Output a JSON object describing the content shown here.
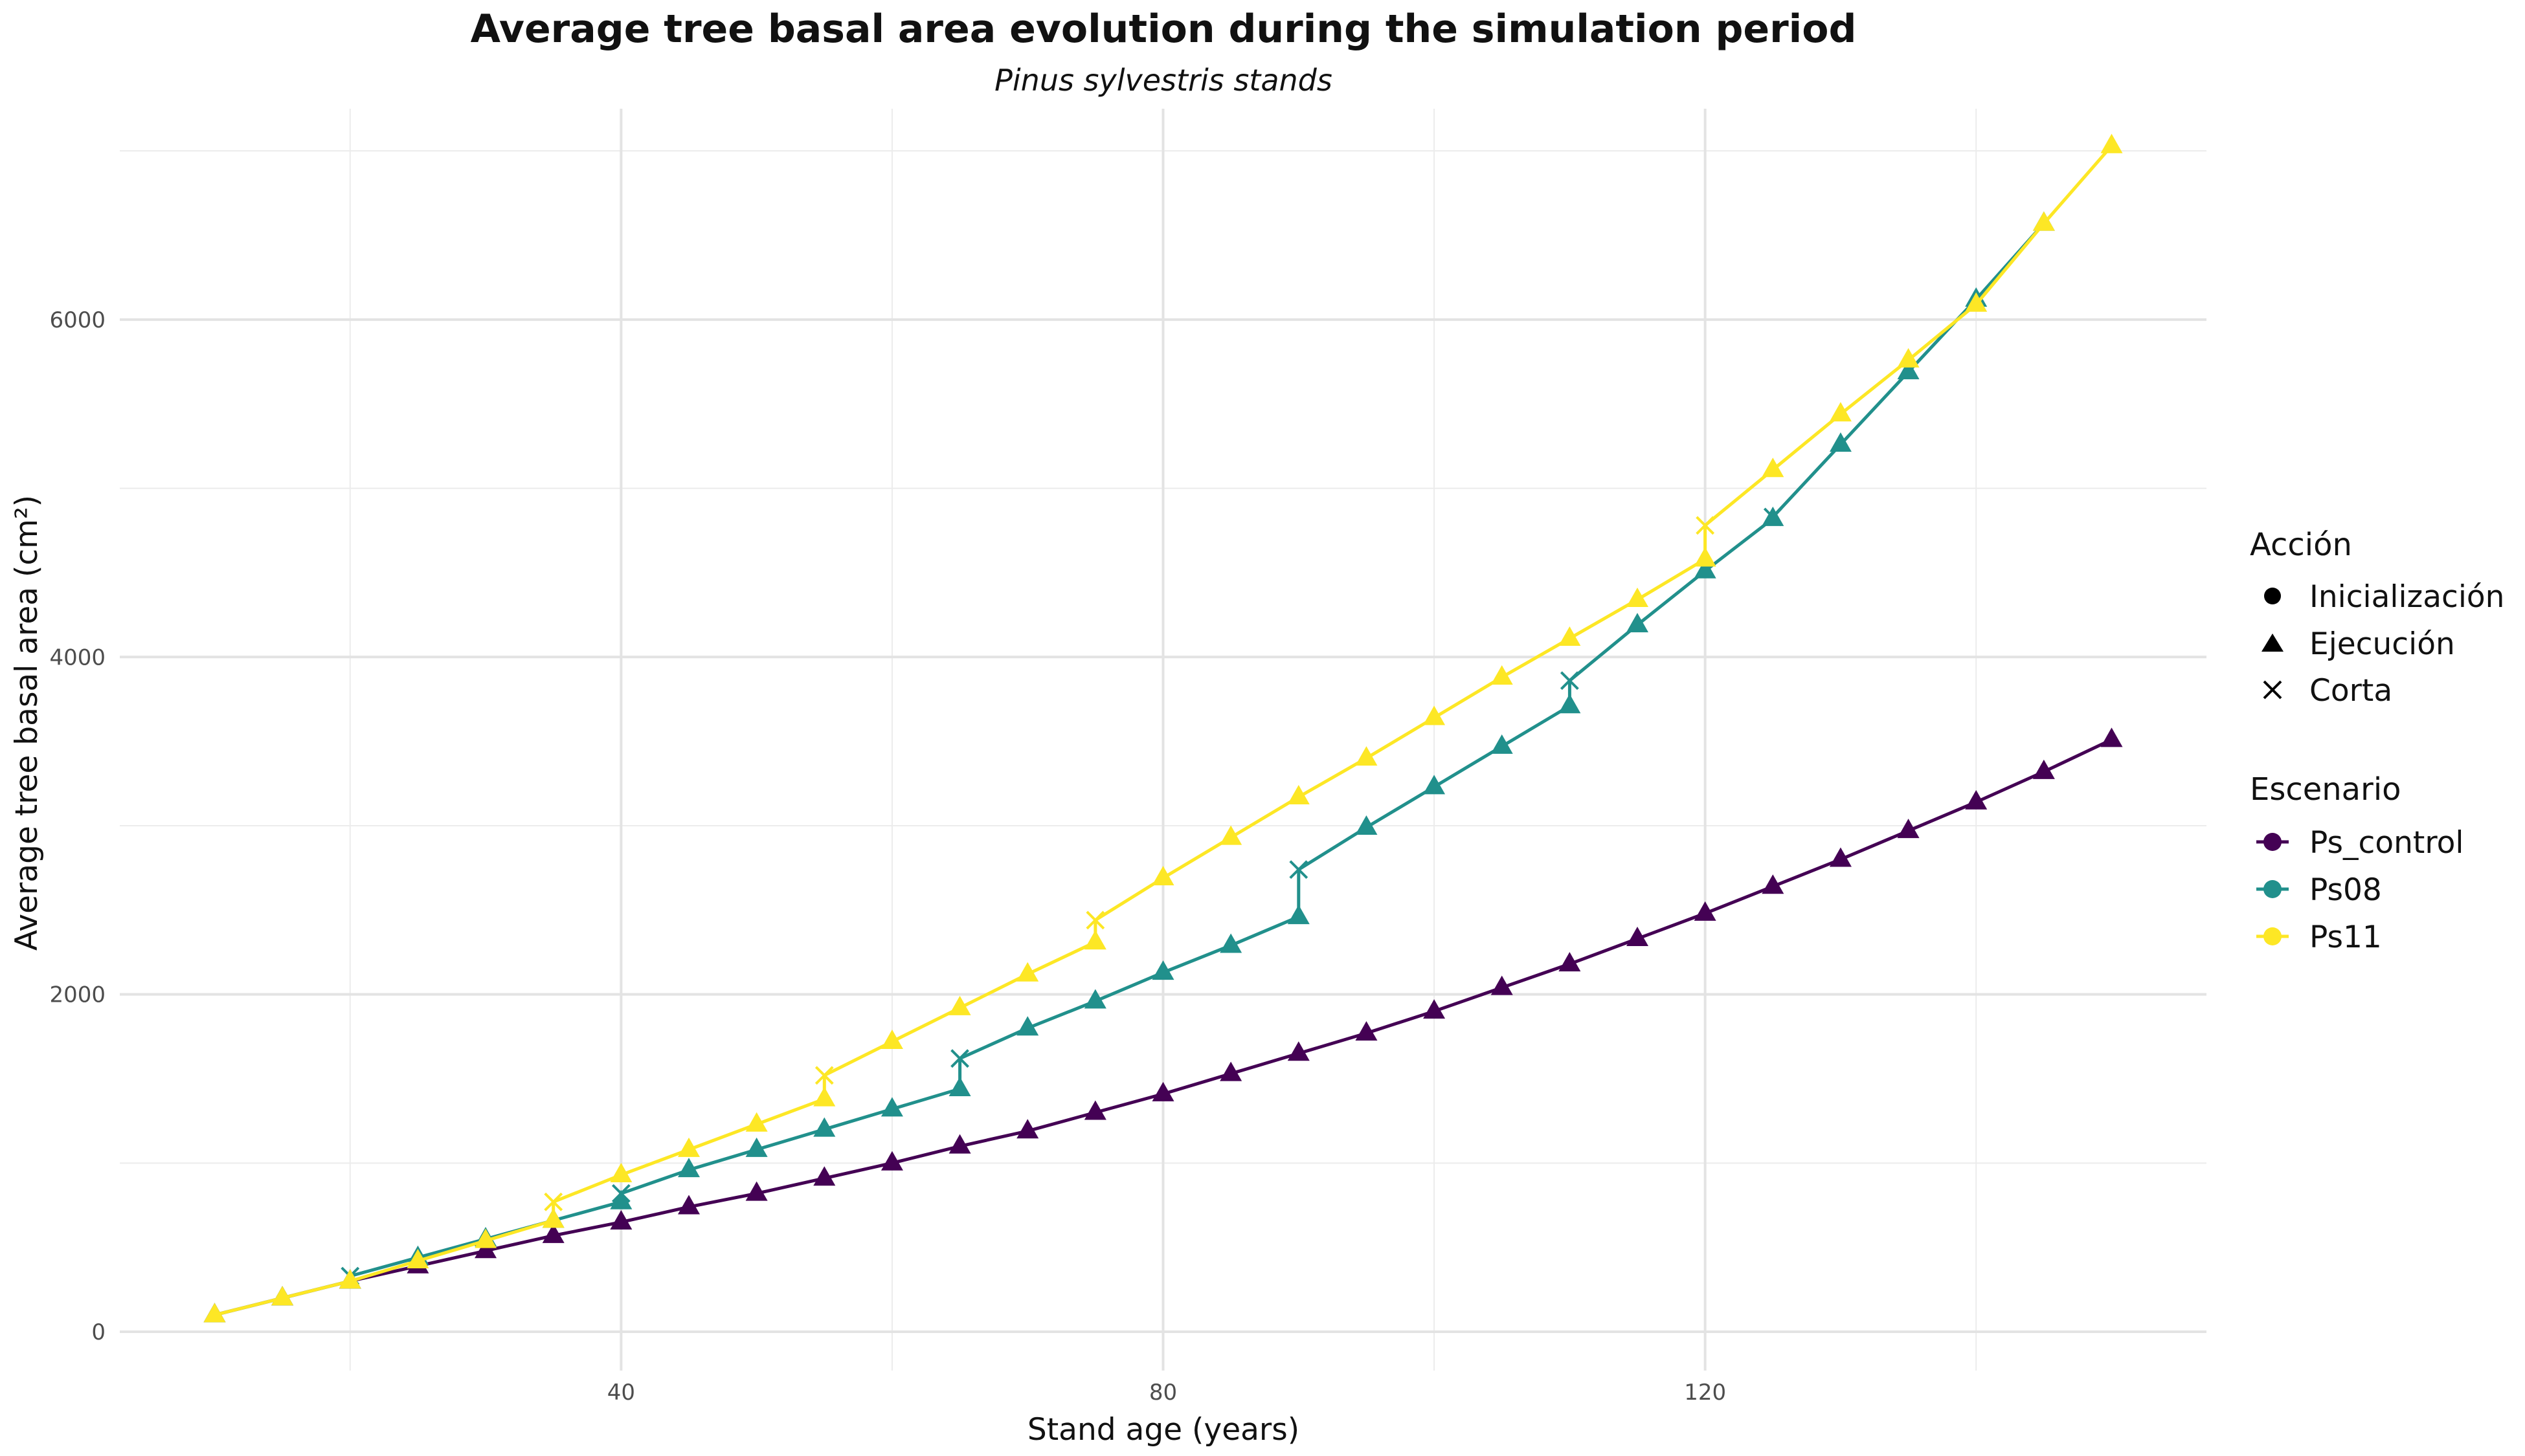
{
  "chart_data": {
    "type": "line",
    "title": "Average tree basal area evolution during the simulation period",
    "subtitle": "Pinus sylvestris stands",
    "xlabel": "Stand age (years)",
    "ylabel": "Average tree basal area (cm²)",
    "xlim": [
      3,
      157
    ],
    "ylim": [
      -230,
      7250
    ],
    "x_ticks": [
      40,
      80,
      120
    ],
    "y_ticks": [
      0,
      2000,
      4000,
      6000
    ],
    "x_tick_labels": [
      "40",
      "80",
      "120"
    ],
    "y_tick_labels": [
      "0",
      "2000",
      "4000",
      "6000"
    ],
    "grid": true,
    "legend_position": "right",
    "legend": {
      "shape_title": "Acción",
      "shape_items": [
        {
          "label": "Inicialización",
          "shape": "circle"
        },
        {
          "label": "Ejecución",
          "shape": "triangle"
        },
        {
          "label": "Corta",
          "shape": "cross"
        }
      ],
      "color_title": "Escenario"
    },
    "series": [
      {
        "name": "Ps_control",
        "color": "#440154",
        "points": [
          {
            "x": 10,
            "y": 100,
            "action": "Ejecución"
          },
          {
            "x": 15,
            "y": 200,
            "action": "Ejecución"
          },
          {
            "x": 20,
            "y": 300,
            "action": "Ejecución"
          },
          {
            "x": 25,
            "y": 390,
            "action": "Ejecución"
          },
          {
            "x": 30,
            "y": 480,
            "action": "Ejecución"
          },
          {
            "x": 35,
            "y": 570,
            "action": "Ejecución"
          },
          {
            "x": 40,
            "y": 650,
            "action": "Ejecución"
          },
          {
            "x": 45,
            "y": 740,
            "action": "Ejecución"
          },
          {
            "x": 50,
            "y": 820,
            "action": "Ejecución"
          },
          {
            "x": 55,
            "y": 910,
            "action": "Ejecución"
          },
          {
            "x": 60,
            "y": 1000,
            "action": "Ejecución"
          },
          {
            "x": 65,
            "y": 1100,
            "action": "Ejecución"
          },
          {
            "x": 70,
            "y": 1190,
            "action": "Ejecución"
          },
          {
            "x": 75,
            "y": 1300,
            "action": "Ejecución"
          },
          {
            "x": 80,
            "y": 1410,
            "action": "Ejecución"
          },
          {
            "x": 85,
            "y": 1530,
            "action": "Ejecución"
          },
          {
            "x": 90,
            "y": 1650,
            "action": "Ejecución"
          },
          {
            "x": 95,
            "y": 1770,
            "action": "Ejecución"
          },
          {
            "x": 100,
            "y": 1900,
            "action": "Ejecución"
          },
          {
            "x": 105,
            "y": 2040,
            "action": "Ejecución"
          },
          {
            "x": 110,
            "y": 2180,
            "action": "Ejecución"
          },
          {
            "x": 115,
            "y": 2330,
            "action": "Ejecución"
          },
          {
            "x": 120,
            "y": 2480,
            "action": "Ejecución"
          },
          {
            "x": 125,
            "y": 2640,
            "action": "Ejecución"
          },
          {
            "x": 130,
            "y": 2800,
            "action": "Ejecución"
          },
          {
            "x": 135,
            "y": 2970,
            "action": "Ejecución"
          },
          {
            "x": 140,
            "y": 3140,
            "action": "Ejecución"
          },
          {
            "x": 145,
            "y": 3320,
            "action": "Ejecución"
          },
          {
            "x": 150,
            "y": 3510,
            "action": "Ejecución"
          }
        ]
      },
      {
        "name": "Ps08",
        "color": "#21908C",
        "points": [
          {
            "x": 10,
            "y": 100,
            "action": "Ejecución"
          },
          {
            "x": 15,
            "y": 200,
            "action": "Ejecución"
          },
          {
            "x": 20,
            "y": 300,
            "action": "Ejecución"
          },
          {
            "x": 20,
            "y": 330,
            "action": "Corta"
          },
          {
            "x": 25,
            "y": 440,
            "action": "Ejecución"
          },
          {
            "x": 30,
            "y": 550,
            "action": "Ejecución"
          },
          {
            "x": 35,
            "y": 660,
            "action": "Ejecución"
          },
          {
            "x": 40,
            "y": 770,
            "action": "Ejecución"
          },
          {
            "x": 40,
            "y": 820,
            "action": "Corta"
          },
          {
            "x": 45,
            "y": 960,
            "action": "Ejecución"
          },
          {
            "x": 50,
            "y": 1080,
            "action": "Ejecución"
          },
          {
            "x": 55,
            "y": 1200,
            "action": "Ejecución"
          },
          {
            "x": 60,
            "y": 1320,
            "action": "Ejecución"
          },
          {
            "x": 65,
            "y": 1440,
            "action": "Ejecución"
          },
          {
            "x": 65,
            "y": 1620,
            "action": "Corta"
          },
          {
            "x": 70,
            "y": 1800,
            "action": "Ejecución"
          },
          {
            "x": 75,
            "y": 1960,
            "action": "Ejecución"
          },
          {
            "x": 80,
            "y": 2130,
            "action": "Ejecución"
          },
          {
            "x": 85,
            "y": 2290,
            "action": "Ejecución"
          },
          {
            "x": 90,
            "y": 2460,
            "action": "Ejecución"
          },
          {
            "x": 90,
            "y": 2740,
            "action": "Corta"
          },
          {
            "x": 95,
            "y": 2990,
            "action": "Ejecución"
          },
          {
            "x": 100,
            "y": 3230,
            "action": "Ejecución"
          },
          {
            "x": 105,
            "y": 3470,
            "action": "Ejecución"
          },
          {
            "x": 110,
            "y": 3710,
            "action": "Ejecución"
          },
          {
            "x": 110,
            "y": 3860,
            "action": "Corta"
          },
          {
            "x": 115,
            "y": 4190,
            "action": "Ejecución"
          },
          {
            "x": 120,
            "y": 4510,
            "action": "Ejecución"
          },
          {
            "x": 125,
            "y": 4820,
            "action": "Ejecución"
          },
          {
            "x": 125,
            "y": 4830,
            "action": "Corta"
          },
          {
            "x": 130,
            "y": 5260,
            "action": "Ejecución"
          },
          {
            "x": 135,
            "y": 5690,
            "action": "Ejecución"
          },
          {
            "x": 140,
            "y": 6120,
            "action": "Ejecución"
          },
          {
            "x": 145,
            "y": 6570,
            "action": "Ejecución"
          }
        ]
      },
      {
        "name": "Ps11",
        "color": "#FDE725",
        "points": [
          {
            "x": 10,
            "y": 100,
            "action": "Ejecución"
          },
          {
            "x": 15,
            "y": 200,
            "action": "Ejecución"
          },
          {
            "x": 20,
            "y": 300,
            "action": "Ejecución"
          },
          {
            "x": 25,
            "y": 420,
            "action": "Ejecución"
          },
          {
            "x": 30,
            "y": 540,
            "action": "Ejecución"
          },
          {
            "x": 35,
            "y": 660,
            "action": "Ejecución"
          },
          {
            "x": 35,
            "y": 770,
            "action": "Corta"
          },
          {
            "x": 40,
            "y": 930,
            "action": "Ejecución"
          },
          {
            "x": 45,
            "y": 1080,
            "action": "Ejecución"
          },
          {
            "x": 50,
            "y": 1230,
            "action": "Ejecución"
          },
          {
            "x": 55,
            "y": 1380,
            "action": "Ejecución"
          },
          {
            "x": 55,
            "y": 1520,
            "action": "Corta"
          },
          {
            "x": 60,
            "y": 1720,
            "action": "Ejecución"
          },
          {
            "x": 65,
            "y": 1920,
            "action": "Ejecución"
          },
          {
            "x": 70,
            "y": 2120,
            "action": "Ejecución"
          },
          {
            "x": 75,
            "y": 2310,
            "action": "Ejecución"
          },
          {
            "x": 75,
            "y": 2440,
            "action": "Corta"
          },
          {
            "x": 80,
            "y": 2690,
            "action": "Ejecución"
          },
          {
            "x": 85,
            "y": 2930,
            "action": "Ejecución"
          },
          {
            "x": 90,
            "y": 3170,
            "action": "Ejecución"
          },
          {
            "x": 95,
            "y": 3400,
            "action": "Ejecución"
          },
          {
            "x": 100,
            "y": 3640,
            "action": "Ejecución"
          },
          {
            "x": 105,
            "y": 3880,
            "action": "Ejecución"
          },
          {
            "x": 110,
            "y": 4110,
            "action": "Ejecución"
          },
          {
            "x": 115,
            "y": 4340,
            "action": "Ejecución"
          },
          {
            "x": 120,
            "y": 4580,
            "action": "Ejecución"
          },
          {
            "x": 120,
            "y": 4780,
            "action": "Corta"
          },
          {
            "x": 125,
            "y": 5110,
            "action": "Ejecución"
          },
          {
            "x": 130,
            "y": 5440,
            "action": "Ejecución"
          },
          {
            "x": 135,
            "y": 5760,
            "action": "Ejecución"
          },
          {
            "x": 140,
            "y": 6090,
            "action": "Ejecución"
          },
          {
            "x": 145,
            "y": 6570,
            "action": "Ejecución"
          },
          {
            "x": 150,
            "y": 7030,
            "action": "Ejecución"
          }
        ]
      }
    ]
  }
}
